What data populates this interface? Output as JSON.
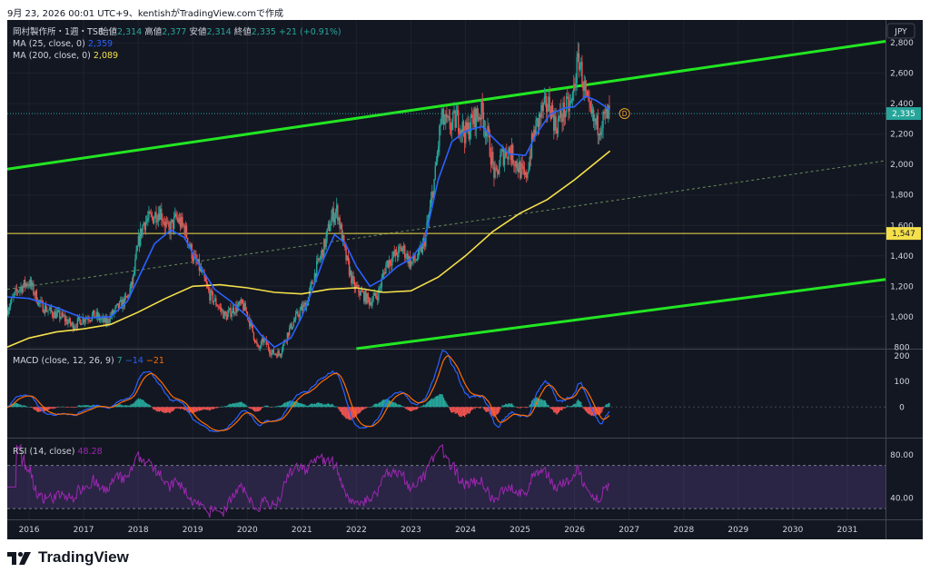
{
  "header": {
    "text": "9月 23, 2026 00:01 UTC+9、kentishがTradingView.comで作成"
  },
  "legend": {
    "symbol": "岡村製作所・1週・TSE",
    "open_label": "始値",
    "open": "2,314",
    "high_label": "高値",
    "high": "2,377",
    "low_label": "安値",
    "low": "2,314",
    "close_label": "終値",
    "close": "2,335",
    "change": "+21 (+0.91%)",
    "ma25_label": "MA (25, close, 0)",
    "ma25_value": "2,359",
    "ma200_label": "MA (200, close, 0)",
    "ma200_value": "2,089"
  },
  "currency": "JPY",
  "macd_legend": {
    "label": "MACD (close, 12, 26, 9)",
    "hist": "7",
    "macd": "−14",
    "signal": "−21"
  },
  "rsi_legend": {
    "label": "RSI (14, close)",
    "value": "48.28"
  },
  "price_badge": "2,335",
  "level_badge": "1,547",
  "dividend_marker": "D",
  "price_axis": [
    {
      "v": 2800,
      "t": "2,800"
    },
    {
      "v": 2600,
      "t": "2,600"
    },
    {
      "v": 2400,
      "t": "2,400"
    },
    {
      "v": 2200,
      "t": "2,200"
    },
    {
      "v": 2000,
      "t": "2,000"
    },
    {
      "v": 1800,
      "t": "1,800"
    },
    {
      "v": 1600,
      "t": "1,600"
    },
    {
      "v": 1400,
      "t": "1,400"
    },
    {
      "v": 1200,
      "t": "1,200"
    },
    {
      "v": 1000,
      "t": "1,000"
    },
    {
      "v": 800,
      "t": "800"
    }
  ],
  "macd_axis": [
    {
      "v": 200,
      "t": "200"
    },
    {
      "v": 100,
      "t": "100"
    },
    {
      "v": 0,
      "t": "0"
    }
  ],
  "rsi_axis": [
    {
      "v": 80,
      "t": "80.00"
    },
    {
      "v": 40,
      "t": "40.00"
    }
  ],
  "years": [
    "2016",
    "2017",
    "2018",
    "2019",
    "2020",
    "2021",
    "2022",
    "2023",
    "2024",
    "2025",
    "2026",
    "2027",
    "2028",
    "2029",
    "2030",
    "2031"
  ],
  "colors": {
    "background": "#131722",
    "up": "#26a69a",
    "down": "#ef5350",
    "ma25": "#2962ff",
    "ma200": "#f5e04a",
    "channel": "#22e622",
    "macd": "#2962ff",
    "signal": "#ff6d00",
    "rsi": "#9c27b0",
    "level": "#f5e04a"
  },
  "logo": "TradingView",
  "chart_data": {
    "type": "candlestick",
    "title": "岡村製作所・1週・TSE",
    "x_range": [
      2015.6,
      2031.7
    ],
    "y_range": [
      790,
      2950
    ],
    "current_close": 2335,
    "horizontal_level": 1547,
    "price_path": [
      [
        2015.6,
        1050
      ],
      [
        2015.8,
        1180
      ],
      [
        2016.0,
        1230
      ],
      [
        2016.2,
        1080
      ],
      [
        2016.4,
        1030
      ],
      [
        2016.6,
        1000
      ],
      [
        2016.8,
        940
      ],
      [
        2017.0,
        990
      ],
      [
        2017.2,
        1010
      ],
      [
        2017.4,
        960
      ],
      [
        2017.6,
        1050
      ],
      [
        2017.8,
        1120
      ],
      [
        2017.9,
        1230
      ],
      [
        2018.0,
        1480
      ],
      [
        2018.1,
        1620
      ],
      [
        2018.25,
        1650
      ],
      [
        2018.4,
        1700
      ],
      [
        2018.55,
        1560
      ],
      [
        2018.7,
        1650
      ],
      [
        2018.85,
        1580
      ],
      [
        2019.0,
        1400
      ],
      [
        2019.15,
        1300
      ],
      [
        2019.3,
        1150
      ],
      [
        2019.45,
        1080
      ],
      [
        2019.6,
        1000
      ],
      [
        2019.75,
        1050
      ],
      [
        2019.9,
        1080
      ],
      [
        2020.0,
        1020
      ],
      [
        2020.1,
        900
      ],
      [
        2020.2,
        780
      ],
      [
        2020.3,
        850
      ],
      [
        2020.45,
        760
      ],
      [
        2020.6,
        760
      ],
      [
        2020.75,
        900
      ],
      [
        2020.9,
        1000
      ],
      [
        2021.0,
        1050
      ],
      [
        2021.1,
        1100
      ],
      [
        2021.25,
        1300
      ],
      [
        2021.4,
        1450
      ],
      [
        2021.55,
        1660
      ],
      [
        2021.65,
        1700
      ],
      [
        2021.8,
        1400
      ],
      [
        2021.95,
        1200
      ],
      [
        2022.1,
        1150
      ],
      [
        2022.25,
        1100
      ],
      [
        2022.4,
        1150
      ],
      [
        2022.55,
        1350
      ],
      [
        2022.7,
        1400
      ],
      [
        2022.85,
        1450
      ],
      [
        2023.0,
        1350
      ],
      [
        2023.15,
        1400
      ],
      [
        2023.25,
        1500
      ],
      [
        2023.35,
        1700
      ],
      [
        2023.45,
        1950
      ],
      [
        2023.55,
        2300
      ],
      [
        2023.7,
        2250
      ],
      [
        2023.85,
        2300
      ],
      [
        2024.0,
        2200
      ],
      [
        2024.15,
        2300
      ],
      [
        2024.3,
        2350
      ],
      [
        2024.4,
        2200
      ],
      [
        2024.55,
        1900
      ],
      [
        2024.65,
        2050
      ],
      [
        2024.8,
        2100
      ],
      [
        2024.95,
        2000
      ],
      [
        2025.1,
        1900
      ],
      [
        2025.25,
        2200
      ],
      [
        2025.4,
        2350
      ],
      [
        2025.55,
        2400
      ],
      [
        2025.65,
        2250
      ],
      [
        2025.8,
        2350
      ],
      [
        2025.95,
        2400
      ],
      [
        2026.0,
        2550
      ],
      [
        2026.08,
        2700
      ],
      [
        2026.15,
        2550
      ],
      [
        2026.25,
        2350
      ],
      [
        2026.4,
        2250
      ],
      [
        2026.55,
        2300
      ],
      [
        2026.65,
        2335
      ]
    ],
    "ma25": [
      [
        2015.6,
        1130
      ],
      [
        2016.0,
        1120
      ],
      [
        2016.5,
        1060
      ],
      [
        2017.0,
        990
      ],
      [
        2017.5,
        1000
      ],
      [
        2017.8,
        1100
      ],
      [
        2018.0,
        1250
      ],
      [
        2018.3,
        1480
      ],
      [
        2018.6,
        1570
      ],
      [
        2018.85,
        1520
      ],
      [
        2019.1,
        1350
      ],
      [
        2019.4,
        1180
      ],
      [
        2019.7,
        1100
      ],
      [
        2020.0,
        1000
      ],
      [
        2020.25,
        880
      ],
      [
        2020.5,
        800
      ],
      [
        2020.8,
        860
      ],
      [
        2021.0,
        1000
      ],
      [
        2021.2,
        1180
      ],
      [
        2021.4,
        1380
      ],
      [
        2021.6,
        1540
      ],
      [
        2021.8,
        1480
      ],
      [
        2022.0,
        1330
      ],
      [
        2022.25,
        1200
      ],
      [
        2022.5,
        1250
      ],
      [
        2022.75,
        1330
      ],
      [
        2023.0,
        1380
      ],
      [
        2023.25,
        1500
      ],
      [
        2023.5,
        1900
      ],
      [
        2023.75,
        2150
      ],
      [
        2024.0,
        2220
      ],
      [
        2024.3,
        2250
      ],
      [
        2024.55,
        2160
      ],
      [
        2024.8,
        2070
      ],
      [
        2025.1,
        2060
      ],
      [
        2025.3,
        2200
      ],
      [
        2025.55,
        2330
      ],
      [
        2025.8,
        2370
      ],
      [
        2026.0,
        2380
      ],
      [
        2026.2,
        2450
      ],
      [
        2026.4,
        2420
      ],
      [
        2026.65,
        2359
      ]
    ],
    "ma200": [
      [
        2015.6,
        800
      ],
      [
        2016.0,
        860
      ],
      [
        2016.5,
        900
      ],
      [
        2017.0,
        920
      ],
      [
        2017.5,
        950
      ],
      [
        2018.0,
        1030
      ],
      [
        2018.5,
        1120
      ],
      [
        2019.0,
        1200
      ],
      [
        2019.5,
        1210
      ],
      [
        2020.0,
        1190
      ],
      [
        2020.5,
        1160
      ],
      [
        2021.0,
        1150
      ],
      [
        2021.5,
        1180
      ],
      [
        2022.0,
        1190
      ],
      [
        2022.5,
        1160
      ],
      [
        2023.0,
        1170
      ],
      [
        2023.5,
        1260
      ],
      [
        2024.0,
        1400
      ],
      [
        2024.5,
        1560
      ],
      [
        2025.0,
        1680
      ],
      [
        2025.5,
        1770
      ],
      [
        2026.0,
        1900
      ],
      [
        2026.65,
        2089
      ]
    ],
    "channel_upper": [
      [
        2015.6,
        1970
      ],
      [
        2031.7,
        2810
      ]
    ],
    "channel_lower": [
      [
        2022.0,
        790
      ],
      [
        2031.7,
        1245
      ]
    ],
    "channel_mid_dashed": [
      [
        2015.6,
        1180
      ],
      [
        2031.7,
        2025
      ]
    ],
    "macd": {
      "y_range": [
        -120,
        225
      ],
      "last": -14,
      "signal_last": -21,
      "hist_last": 7
    },
    "rsi": {
      "y_range": [
        20,
        95
      ],
      "upper_band": 70,
      "lower band": 30,
      "last": 48.28
    }
  }
}
